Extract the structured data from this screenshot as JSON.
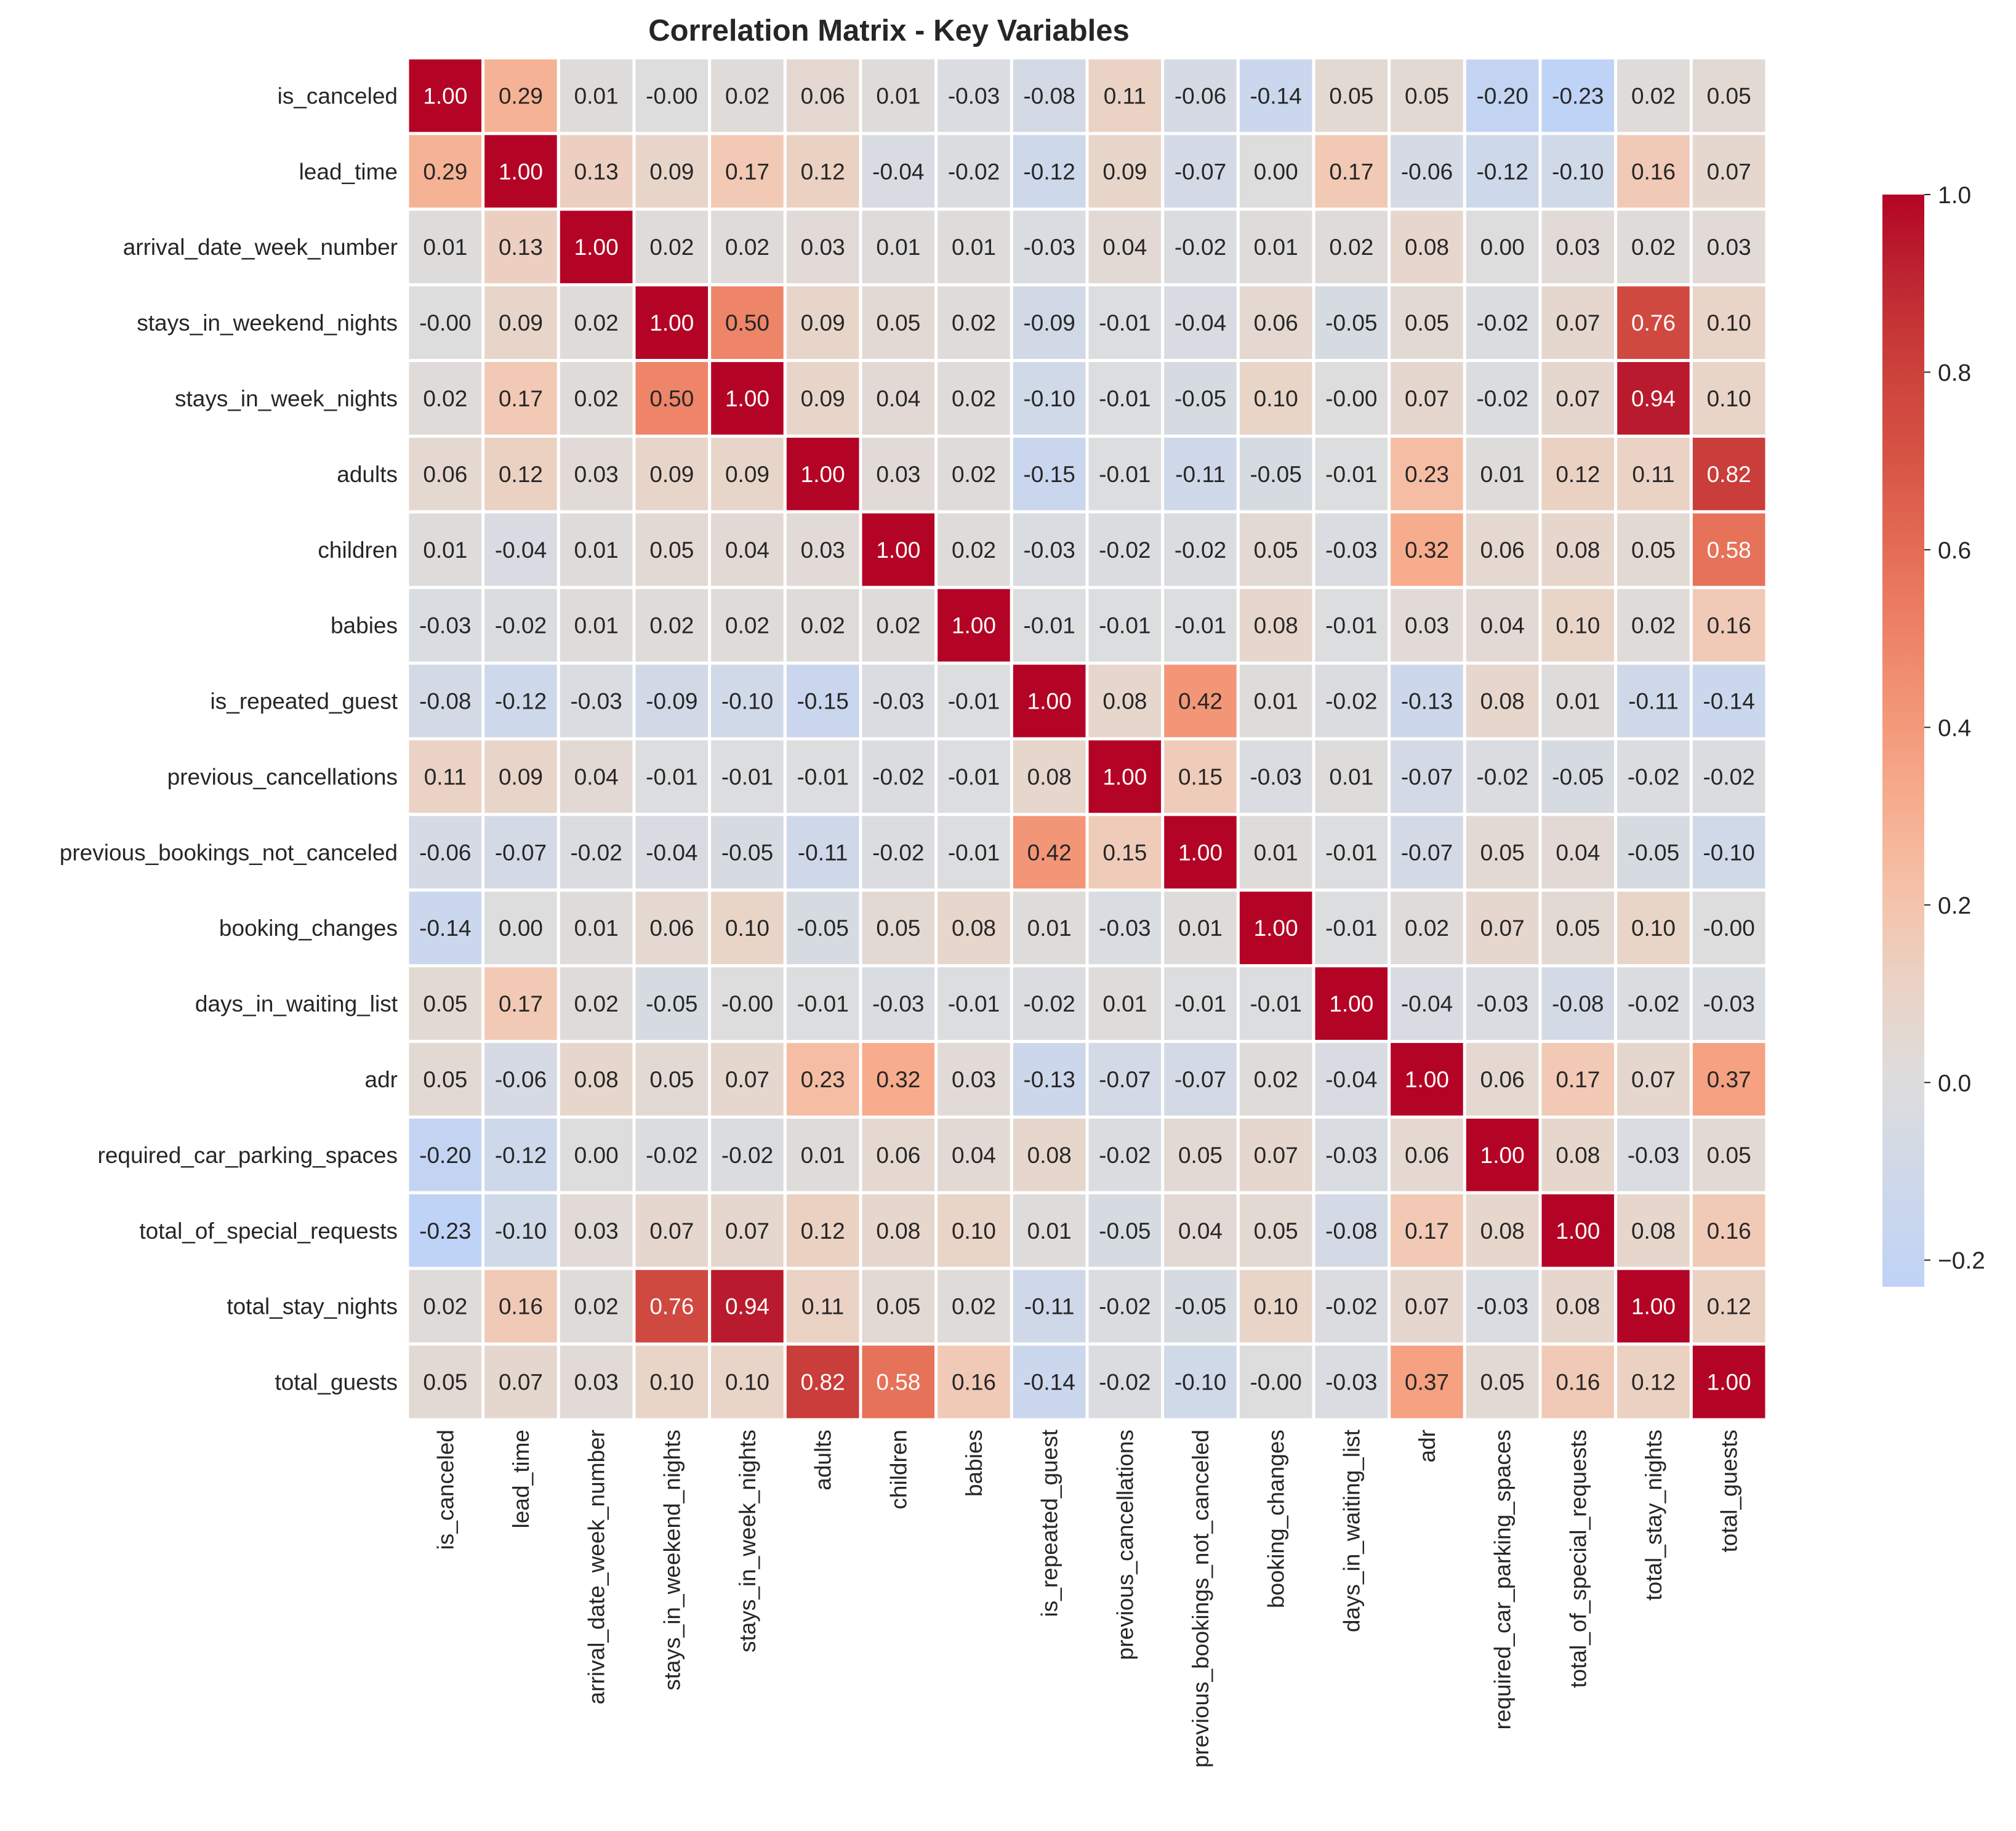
{
  "chart_data": {
    "type": "heatmap",
    "title": "Correlation Matrix - Key Variables",
    "xlabel": "",
    "ylabel": "",
    "labels": [
      "is_canceled",
      "lead_time",
      "arrival_date_week_number",
      "stays_in_weekend_nights",
      "stays_in_week_nights",
      "adults",
      "children",
      "babies",
      "is_repeated_guest",
      "previous_cancellations",
      "previous_bookings_not_canceled",
      "booking_changes",
      "days_in_waiting_list",
      "adr",
      "required_car_parking_spaces",
      "total_of_special_requests",
      "total_stay_nights",
      "total_guests"
    ],
    "cell_labels": [
      [
        "1.00",
        "0.29",
        "0.01",
        "-0.00",
        "0.02",
        "0.06",
        "0.01",
        "-0.03",
        "-0.08",
        "0.11",
        "-0.06",
        "-0.14",
        "0.05",
        "0.05",
        "-0.20",
        "-0.23",
        "0.02",
        "0.05"
      ],
      [
        "0.29",
        "1.00",
        "0.13",
        "0.09",
        "0.17",
        "0.12",
        "-0.04",
        "-0.02",
        "-0.12",
        "0.09",
        "-0.07",
        "0.00",
        "0.17",
        "-0.06",
        "-0.12",
        "-0.10",
        "0.16",
        "0.07"
      ],
      [
        "0.01",
        "0.13",
        "1.00",
        "0.02",
        "0.02",
        "0.03",
        "0.01",
        "0.01",
        "-0.03",
        "0.04",
        "-0.02",
        "0.01",
        "0.02",
        "0.08",
        "0.00",
        "0.03",
        "0.02",
        "0.03"
      ],
      [
        "-0.00",
        "0.09",
        "0.02",
        "1.00",
        "0.50",
        "0.09",
        "0.05",
        "0.02",
        "-0.09",
        "-0.01",
        "-0.04",
        "0.06",
        "-0.05",
        "0.05",
        "-0.02",
        "0.07",
        "0.76",
        "0.10"
      ],
      [
        "0.02",
        "0.17",
        "0.02",
        "0.50",
        "1.00",
        "0.09",
        "0.04",
        "0.02",
        "-0.10",
        "-0.01",
        "-0.05",
        "0.10",
        "-0.00",
        "0.07",
        "-0.02",
        "0.07",
        "0.94",
        "0.10"
      ],
      [
        "0.06",
        "0.12",
        "0.03",
        "0.09",
        "0.09",
        "1.00",
        "0.03",
        "0.02",
        "-0.15",
        "-0.01",
        "-0.11",
        "-0.05",
        "-0.01",
        "0.23",
        "0.01",
        "0.12",
        "0.11",
        "0.82"
      ],
      [
        "0.01",
        "-0.04",
        "0.01",
        "0.05",
        "0.04",
        "0.03",
        "1.00",
        "0.02",
        "-0.03",
        "-0.02",
        "-0.02",
        "0.05",
        "-0.03",
        "0.32",
        "0.06",
        "0.08",
        "0.05",
        "0.58"
      ],
      [
        "-0.03",
        "-0.02",
        "0.01",
        "0.02",
        "0.02",
        "0.02",
        "0.02",
        "1.00",
        "-0.01",
        "-0.01",
        "-0.01",
        "0.08",
        "-0.01",
        "0.03",
        "0.04",
        "0.10",
        "0.02",
        "0.16"
      ],
      [
        "-0.08",
        "-0.12",
        "-0.03",
        "-0.09",
        "-0.10",
        "-0.15",
        "-0.03",
        "-0.01",
        "1.00",
        "0.08",
        "0.42",
        "0.01",
        "-0.02",
        "-0.13",
        "0.08",
        "0.01",
        "-0.11",
        "-0.14"
      ],
      [
        "0.11",
        "0.09",
        "0.04",
        "-0.01",
        "-0.01",
        "-0.01",
        "-0.02",
        "-0.01",
        "0.08",
        "1.00",
        "0.15",
        "-0.03",
        "0.01",
        "-0.07",
        "-0.02",
        "-0.05",
        "-0.02",
        "-0.02"
      ],
      [
        "-0.06",
        "-0.07",
        "-0.02",
        "-0.04",
        "-0.05",
        "-0.11",
        "-0.02",
        "-0.01",
        "0.42",
        "0.15",
        "1.00",
        "0.01",
        "-0.01",
        "-0.07",
        "0.05",
        "0.04",
        "-0.05",
        "-0.10"
      ],
      [
        "-0.14",
        "0.00",
        "0.01",
        "0.06",
        "0.10",
        "-0.05",
        "0.05",
        "0.08",
        "0.01",
        "-0.03",
        "0.01",
        "1.00",
        "-0.01",
        "0.02",
        "0.07",
        "0.05",
        "0.10",
        "-0.00"
      ],
      [
        "0.05",
        "0.17",
        "0.02",
        "-0.05",
        "-0.00",
        "-0.01",
        "-0.03",
        "-0.01",
        "-0.02",
        "0.01",
        "-0.01",
        "-0.01",
        "1.00",
        "-0.04",
        "-0.03",
        "-0.08",
        "-0.02",
        "-0.03"
      ],
      [
        "0.05",
        "-0.06",
        "0.08",
        "0.05",
        "0.07",
        "0.23",
        "0.32",
        "0.03",
        "-0.13",
        "-0.07",
        "-0.07",
        "0.02",
        "-0.04",
        "1.00",
        "0.06",
        "0.17",
        "0.07",
        "0.37"
      ],
      [
        "-0.20",
        "-0.12",
        "0.00",
        "-0.02",
        "-0.02",
        "0.01",
        "0.06",
        "0.04",
        "0.08",
        "-0.02",
        "0.05",
        "0.07",
        "-0.03",
        "0.06",
        "1.00",
        "0.08",
        "-0.03",
        "0.05"
      ],
      [
        "-0.23",
        "-0.10",
        "0.03",
        "0.07",
        "0.07",
        "0.12",
        "0.08",
        "0.10",
        "0.01",
        "-0.05",
        "0.04",
        "0.05",
        "-0.08",
        "0.17",
        "0.08",
        "1.00",
        "0.08",
        "0.16"
      ],
      [
        "0.02",
        "0.16",
        "0.02",
        "0.76",
        "0.94",
        "0.11",
        "0.05",
        "0.02",
        "-0.11",
        "-0.02",
        "-0.05",
        "0.10",
        "-0.02",
        "0.07",
        "-0.03",
        "0.08",
        "1.00",
        "0.12"
      ],
      [
        "0.05",
        "0.07",
        "0.03",
        "0.10",
        "0.10",
        "0.82",
        "0.58",
        "0.16",
        "-0.14",
        "-0.02",
        "-0.10",
        "-0.00",
        "-0.03",
        "0.37",
        "0.05",
        "0.16",
        "0.12",
        "1.00"
      ]
    ],
    "value_range": [
      -0.23,
      1.0
    ],
    "colormap": "coolwarm",
    "colorbar": {
      "ticks": [
        -0.2,
        0.0,
        0.2,
        0.4,
        0.6,
        0.8,
        1.0
      ],
      "tick_labels": [
        "−0.2",
        "0.0",
        "0.2",
        "0.4",
        "0.6",
        "0.8",
        "1.0"
      ]
    },
    "grid": false,
    "colors": {
      "cool": "#3b4cc0",
      "neutral": "#dddddd",
      "warm": "#b40426",
      "cell_border": "#ffffff",
      "text_dark": "#262626",
      "text_light": "#ffffff"
    }
  }
}
